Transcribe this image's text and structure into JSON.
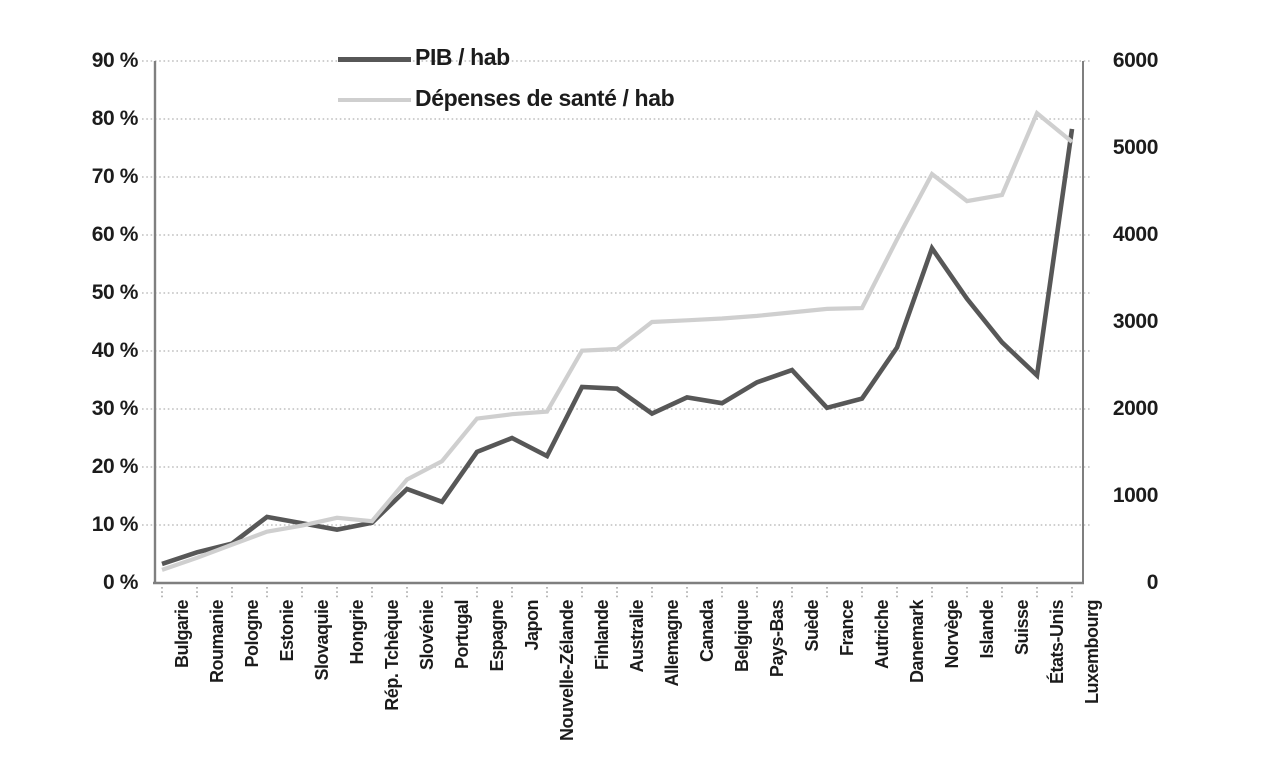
{
  "chart_data": {
    "type": "line",
    "title": "",
    "categories": [
      "Bulgarie",
      "Roumanie",
      "Pologne",
      "Estonie",
      "Slovaquie",
      "Hongrie",
      "Rép. Tchèque",
      "Slovénie",
      "Portugal",
      "Espagne",
      "Japon",
      "Nouvelle-Zélande",
      "Finlande",
      "Australie",
      "Allemagne",
      "Canada",
      "Belgique",
      "Pays-Bas",
      "Suède",
      "France",
      "Autriche",
      "Danemark",
      "Norvège",
      "Islande",
      "Suisse",
      "États-Unis",
      "Luxembourg"
    ],
    "series": [
      {
        "name": "PIB / hab",
        "axis": "left",
        "unit": "percent",
        "color": "#575757",
        "values": [
          3.3,
          5.3,
          6.8,
          11.4,
          10.3,
          9.2,
          10.4,
          16.2,
          14.0,
          22.6,
          25.0,
          21.9,
          33.8,
          33.5,
          29.2,
          32.0,
          31.0,
          34.6,
          36.7,
          30.2,
          31.8,
          40.6,
          57.7,
          49.0,
          41.5,
          35.8,
          78.3
        ]
      },
      {
        "name": "Dépenses de santé / hab",
        "axis": "right",
        "unit": "absolute",
        "color": "#cfcfcf",
        "values": [
          150,
          290,
          440,
          590,
          660,
          750,
          710,
          1190,
          1400,
          1890,
          1940,
          1970,
          2670,
          2690,
          3000,
          3020,
          3040,
          3070,
          3110,
          3150,
          3160,
          3950,
          4700,
          4390,
          4460,
          5400,
          5070
        ]
      }
    ],
    "left_axis": {
      "min": 0,
      "max": 90,
      "step": 10,
      "tick_labels": [
        "0 %",
        "10 %",
        "20 %",
        "30 %",
        "40 %",
        "50 %",
        "60 %",
        "70 %",
        "80 %",
        "90 %"
      ]
    },
    "right_axis": {
      "min": 0,
      "max": 6000,
      "step": 1000,
      "tick_labels": [
        "0",
        "1000",
        "2000",
        "3000",
        "4000",
        "5000",
        "6000"
      ]
    },
    "grid": "horizontal-dotted",
    "legend_position": "top-center",
    "colors": {
      "grid": "#bfbfbf",
      "axis": "#7f7f7f",
      "text": "#1c1c1c"
    }
  }
}
